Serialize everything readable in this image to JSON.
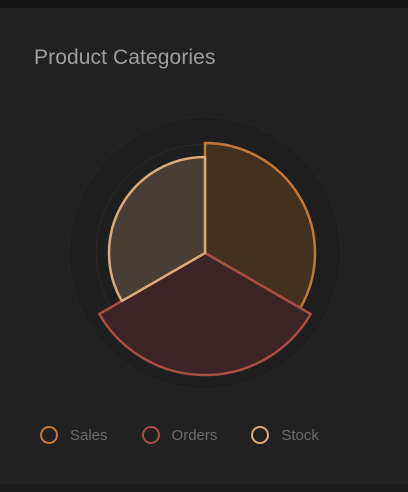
{
  "card": {
    "title": "Product Categories"
  },
  "chart_data": {
    "type": "polar-area",
    "categories": [
      "Sales",
      "Orders",
      "Stock"
    ],
    "values": [
      110,
      122,
      96
    ],
    "rmax": 136,
    "ring_count": 5,
    "colors": {
      "stroke": [
        "#c07a36",
        "#a84f44",
        "#d9aa7c"
      ],
      "fill": [
        "#44301f",
        "#3b2423",
        "#4a3d33"
      ]
    },
    "background": "#212121",
    "ring_color": "#2a2a2a",
    "legend_position": "bottom-left"
  }
}
